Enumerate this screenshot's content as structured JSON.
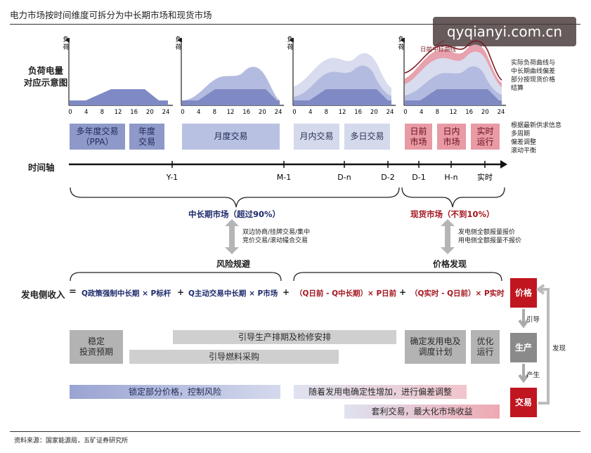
{
  "title": "电力市场按时间维度可拆分为中长期市场和现货市场",
  "watermark": "qyqianyi.com.cn",
  "left_label": "负荷电量\n对应示意图",
  "axis_y_label": "负\n荷",
  "axis_ticks": [
    "0",
    "4",
    "8",
    "12",
    "16",
    "20",
    "24"
  ],
  "curve_annotation": "日前中标曲线",
  "right_note_top": "实际负荷曲线与\n中长期曲线偏差\n部分按现货价格\n结算",
  "right_note_mid": "根据最新供求信息\n多周期\n偏差调整\n滚动平衡",
  "trade_boxes": {
    "ppa": "多年度交易\n（PPA）",
    "annual": "年度\n交易",
    "monthly": "月度交易",
    "intra_month": "月内交易",
    "multi_day": "多日交易",
    "day_ahead": "日前\n市场",
    "intraday": "日内\n市场",
    "realtime": "实时\n运行"
  },
  "timeline": {
    "label": "时间轴",
    "ticks": [
      "Y-1",
      "M-1",
      "D-n",
      "D-2",
      "D-1",
      "H-n",
      "实时"
    ]
  },
  "mid_long_market": "中长期市场（超过90%）",
  "spot_market": "现货市场（不到10%）",
  "mid_long_methods": "双边协商/挂牌交易/集中\n竞价交易/滚动撮合交易",
  "spot_methods": "发电侧全额报量报价\n用电侧全额报量不报价",
  "risk_avoid": "风险规避",
  "price_discovery": "价格发现",
  "revenue_label": "发电侧收入",
  "formula": {
    "eq": "=",
    "t1": "Q政策强制中长期 × P标杆",
    "plus1": "+",
    "t2": "Q主动交易中长期 × P市场",
    "plus2": "+",
    "t3": "（Q日前 - Q中长期）× P日前",
    "plus3": "+",
    "t4": "（Q实时 - Q日前）× P实时"
  },
  "effects": {
    "stable": "稳定\n投资预期",
    "guide_maint": "引导生产排期及检修安排",
    "guide_fuel": "引导燃料采购",
    "confirm_plan": "确定发用电及\n调度计划",
    "optimize": "优化\n运行",
    "lock_price": "锁定部分价格，控制风险",
    "adjust": "随着发用电确定性增加，进行偏差调整",
    "arbitrage": "套利交易，最大化市场收益"
  },
  "right_chain": {
    "price": "价格",
    "guide": "引导",
    "production": "生产",
    "produce": "产生",
    "trade": "交易",
    "discover": "发现"
  },
  "source": "资料来源：国家能源局，五矿证券研究所"
}
